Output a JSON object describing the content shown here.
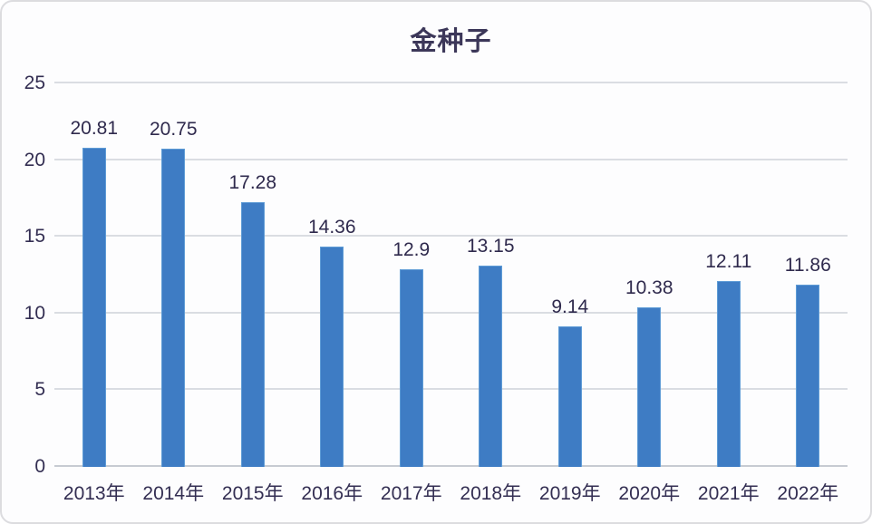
{
  "figure": {
    "background": "#fdfdfe",
    "border_color": "#dcdcdf"
  },
  "chart_data": {
    "type": "bar",
    "title": "金种子",
    "categories": [
      "2013年",
      "2014年",
      "2015年",
      "2016年",
      "2017年",
      "2018年",
      "2019年",
      "2020年",
      "2021年",
      "2022年"
    ],
    "values": [
      20.81,
      20.75,
      17.28,
      14.36,
      12.9,
      13.15,
      9.14,
      10.38,
      12.11,
      11.86
    ],
    "value_labels": [
      "20.81",
      "20.75",
      "17.28",
      "14.36",
      "12.9",
      "13.15",
      "9.14",
      "10.38",
      "12.11",
      "11.86"
    ],
    "xlabel": "",
    "ylabel": "",
    "ylim": [
      0,
      25
    ],
    "yticks": [
      0,
      5,
      10,
      15,
      20,
      25
    ],
    "grid": true,
    "legend": false,
    "bar_color": "#3e7cc4",
    "bar_border_color": "#5f9cd6",
    "gridline_color": "#dadde2",
    "baseline_color": "#c7cbd2",
    "tick_text_color": "#332e52",
    "value_text_color": "#2f2a4d",
    "title_color": "#3c3759"
  }
}
